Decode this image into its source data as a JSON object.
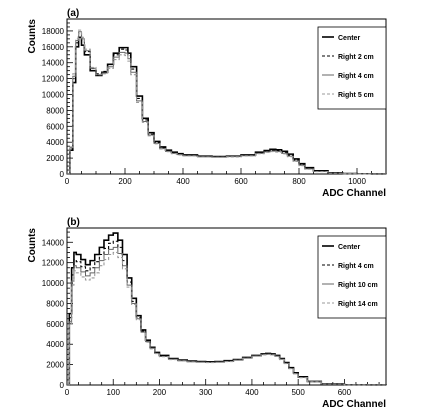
{
  "chart_data": [
    {
      "type": "line",
      "panel_label": "(a)",
      "xlabel": "ADC Channel",
      "ylabel": "Counts",
      "xlim": [
        0,
        1100
      ],
      "ylim": [
        0,
        19500
      ],
      "xticks": [
        0,
        200,
        400,
        600,
        800,
        1000
      ],
      "yticks": [
        0,
        2000,
        4000,
        6000,
        8000,
        10000,
        12000,
        14000,
        16000,
        18000
      ],
      "legend_position": "top-right",
      "series": [
        {
          "name": "Center",
          "color": "#000000",
          "dash": "",
          "width": 1.6,
          "x": [
            0,
            10,
            20,
            30,
            40,
            50,
            60,
            80,
            100,
            120,
            140,
            160,
            180,
            200,
            210,
            220,
            240,
            260,
            280,
            300,
            320,
            340,
            360,
            380,
            400,
            450,
            500,
            550,
            600,
            650,
            680,
            700,
            720,
            740,
            760,
            780,
            800,
            820,
            850,
            900,
            950,
            1000,
            1050,
            1100
          ],
          "y": [
            0,
            3000,
            11500,
            16000,
            17200,
            16200,
            15000,
            13000,
            12400,
            12800,
            13800,
            15200,
            15900,
            15900,
            15200,
            13500,
            9800,
            7000,
            5200,
            4100,
            3400,
            3000,
            2750,
            2550,
            2400,
            2250,
            2200,
            2250,
            2400,
            2750,
            2950,
            3100,
            3050,
            2850,
            2500,
            1900,
            1300,
            800,
            400,
            150,
            60,
            30,
            10,
            0
          ]
        },
        {
          "name": "Right 2 cm",
          "color": "#000000",
          "dash": "3,2",
          "width": 1.1,
          "x": [
            0,
            10,
            20,
            30,
            40,
            50,
            60,
            80,
            100,
            120,
            140,
            160,
            180,
            200,
            210,
            220,
            240,
            260,
            280,
            300,
            320,
            340,
            360,
            380,
            400,
            450,
            500,
            550,
            600,
            650,
            680,
            700,
            720,
            740,
            760,
            780,
            800,
            820,
            850,
            900,
            950,
            1000,
            1050,
            1100
          ],
          "y": [
            0,
            3200,
            12000,
            16500,
            17700,
            16800,
            15400,
            13300,
            12600,
            12900,
            13800,
            15000,
            15700,
            15600,
            14900,
            13200,
            9500,
            6800,
            5000,
            3950,
            3300,
            2900,
            2650,
            2480,
            2350,
            2200,
            2160,
            2220,
            2350,
            2680,
            2870,
            2980,
            2930,
            2720,
            2350,
            1750,
            1200,
            720,
            360,
            130,
            50,
            25,
            8,
            0
          ]
        },
        {
          "name": "Right 4 cm",
          "color": "#666666",
          "dash": "",
          "width": 1.0,
          "x": [
            0,
            10,
            20,
            30,
            40,
            50,
            60,
            80,
            100,
            120,
            140,
            160,
            180,
            200,
            210,
            220,
            240,
            260,
            280,
            300,
            320,
            340,
            360,
            380,
            400,
            450,
            500,
            550,
            600,
            650,
            680,
            700,
            720,
            740,
            760,
            780,
            800,
            820,
            850,
            900,
            950,
            1000,
            1050,
            1100
          ],
          "y": [
            0,
            3300,
            12300,
            16800,
            17900,
            17000,
            15500,
            13300,
            12500,
            12700,
            13500,
            14700,
            15300,
            15200,
            14500,
            12800,
            9200,
            6600,
            4900,
            3850,
            3200,
            2850,
            2600,
            2430,
            2300,
            2170,
            2120,
            2180,
            2300,
            2600,
            2780,
            2880,
            2820,
            2600,
            2250,
            1650,
            1100,
            650,
            320,
            110,
            40,
            20,
            6,
            0
          ]
        },
        {
          "name": "Right 5 cm",
          "color": "#999999",
          "dash": "3,2",
          "width": 1.1,
          "x": [
            0,
            10,
            20,
            30,
            40,
            50,
            60,
            80,
            100,
            120,
            140,
            160,
            180,
            200,
            210,
            220,
            240,
            260,
            280,
            300,
            320,
            340,
            360,
            380,
            400,
            450,
            500,
            550,
            600,
            650,
            680,
            700,
            720,
            740,
            760,
            780,
            800,
            820,
            850,
            900,
            950,
            1000,
            1050,
            1100
          ],
          "y": [
            0,
            3400,
            12600,
            17000,
            18100,
            17200,
            15700,
            13400,
            12500,
            12600,
            13300,
            14400,
            15000,
            14900,
            14200,
            12500,
            9000,
            6500,
            4800,
            3800,
            3150,
            2800,
            2550,
            2400,
            2280,
            2140,
            2100,
            2150,
            2270,
            2550,
            2720,
            2820,
            2760,
            2540,
            2180,
            1580,
            1050,
            600,
            300,
            100,
            35,
            18,
            5,
            0
          ]
        }
      ]
    },
    {
      "type": "line",
      "panel_label": "(b)",
      "xlabel": "ADC Channel",
      "ylabel": "Counts",
      "xlim": [
        0,
        690
      ],
      "ylim": [
        0,
        15400
      ],
      "xticks": [
        0,
        100,
        200,
        300,
        400,
        500,
        600
      ],
      "yticks": [
        0,
        2000,
        4000,
        6000,
        8000,
        10000,
        12000,
        14000
      ],
      "legend_position": "top-right",
      "series": [
        {
          "name": "Center",
          "color": "#000000",
          "dash": "",
          "width": 1.6,
          "x": [
            0,
            5,
            10,
            15,
            20,
            30,
            40,
            50,
            60,
            70,
            80,
            90,
            100,
            110,
            120,
            130,
            140,
            150,
            160,
            170,
            180,
            190,
            200,
            220,
            240,
            260,
            280,
            300,
            320,
            340,
            360,
            380,
            400,
            420,
            430,
            440,
            450,
            460,
            470,
            480,
            490,
            500,
            520,
            550,
            600,
            650,
            690
          ],
          "y": [
            0,
            7000,
            11500,
            13000,
            12800,
            12300,
            11800,
            12200,
            12800,
            13500,
            14200,
            14700,
            14900,
            14200,
            12800,
            10500,
            8500,
            6800,
            5400,
            4400,
            3700,
            3200,
            2900,
            2600,
            2450,
            2350,
            2300,
            2280,
            2300,
            2380,
            2500,
            2700,
            2900,
            3050,
            3100,
            3050,
            2900,
            2600,
            2200,
            1700,
            1200,
            800,
            350,
            100,
            20,
            5,
            0
          ]
        },
        {
          "name": "Right 4 cm",
          "color": "#000000",
          "dash": "3,2",
          "width": 1.1,
          "x": [
            0,
            5,
            10,
            15,
            20,
            30,
            40,
            50,
            60,
            70,
            80,
            90,
            100,
            110,
            120,
            130,
            140,
            150,
            160,
            170,
            180,
            190,
            200,
            220,
            240,
            260,
            280,
            300,
            320,
            340,
            360,
            380,
            400,
            420,
            430,
            440,
            450,
            460,
            470,
            480,
            490,
            500,
            520,
            550,
            600,
            650,
            690
          ],
          "y": [
            0,
            6600,
            10800,
            12300,
            12100,
            11600,
            11200,
            11500,
            12100,
            12800,
            13400,
            13900,
            14100,
            13500,
            12200,
            10100,
            8200,
            6600,
            5300,
            4300,
            3650,
            3150,
            2850,
            2550,
            2400,
            2300,
            2260,
            2240,
            2260,
            2340,
            2460,
            2660,
            2860,
            3000,
            3050,
            3000,
            2850,
            2550,
            2150,
            1650,
            1150,
            760,
            330,
            95,
            18,
            4,
            0
          ]
        },
        {
          "name": "Right 10 cm",
          "color": "#666666",
          "dash": "",
          "width": 1.0,
          "x": [
            0,
            5,
            10,
            15,
            20,
            30,
            40,
            50,
            60,
            70,
            80,
            90,
            100,
            110,
            120,
            130,
            140,
            150,
            160,
            170,
            180,
            190,
            200,
            220,
            240,
            260,
            280,
            300,
            320,
            340,
            360,
            380,
            400,
            420,
            430,
            440,
            450,
            460,
            470,
            480,
            490,
            500,
            520,
            550,
            600,
            650,
            690
          ],
          "y": [
            0,
            6200,
            10200,
            11700,
            11500,
            11100,
            10700,
            11000,
            11500,
            12200,
            12800,
            13300,
            13500,
            12900,
            11700,
            9800,
            8000,
            6500,
            5200,
            4250,
            3600,
            3100,
            2800,
            2520,
            2380,
            2280,
            2240,
            2220,
            2240,
            2320,
            2440,
            2640,
            2840,
            2980,
            3020,
            2970,
            2820,
            2520,
            2120,
            1620,
            1120,
            740,
            320,
            90,
            16,
            3,
            0
          ]
        },
        {
          "name": "Right 14 cm",
          "color": "#999999",
          "dash": "3,2",
          "width": 1.1,
          "x": [
            0,
            5,
            10,
            15,
            20,
            30,
            40,
            50,
            60,
            70,
            80,
            90,
            100,
            110,
            120,
            130,
            140,
            150,
            160,
            170,
            180,
            190,
            200,
            220,
            240,
            260,
            280,
            300,
            320,
            340,
            360,
            380,
            400,
            420,
            430,
            440,
            450,
            460,
            470,
            480,
            490,
            500,
            520,
            550,
            600,
            650,
            690
          ],
          "y": [
            0,
            5900,
            9800,
            11200,
            11000,
            10600,
            10300,
            10500,
            11000,
            11700,
            12300,
            12800,
            13000,
            12500,
            11400,
            9600,
            7900,
            6400,
            5150,
            4200,
            3550,
            3080,
            2780,
            2500,
            2360,
            2260,
            2220,
            2200,
            2220,
            2300,
            2420,
            2620,
            2820,
            2960,
            3000,
            2950,
            2800,
            2500,
            2100,
            1600,
            1100,
            720,
            310,
            85,
            15,
            3,
            0
          ]
        }
      ]
    }
  ]
}
